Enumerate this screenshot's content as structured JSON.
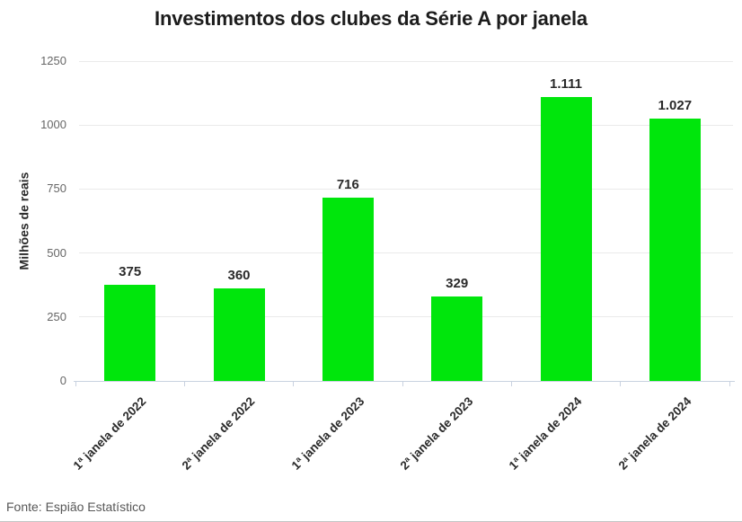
{
  "title": "Investimentos dos clubes da Série A por janela",
  "source": "Fonte: Espião Estatístico",
  "colors": {
    "bar": "#00e60c",
    "grid": "#eaeaea",
    "axis": "#c9d2e0",
    "title_text": "#1c1c1c",
    "value_label_text": "#2a2a2a",
    "y_tick_text": "#666666",
    "source_text": "#575757"
  },
  "chart_data": {
    "type": "bar",
    "title": "Investimentos dos clubes da Série A por janela",
    "xlabel": "",
    "ylabel": "Milhões de reais",
    "ylim": [
      0,
      1250
    ],
    "y_ticks": [
      0,
      250,
      500,
      750,
      1000,
      1250
    ],
    "grid": true,
    "legend": false,
    "categories": [
      "1ª janela de 2022",
      "2ª janela de 2022",
      "1ª janela de 2023",
      "2ª janela de 2023",
      "1ª janela de 2024",
      "2ª janela de 2024"
    ],
    "values": [
      375,
      360,
      716,
      329,
      1111,
      1027
    ],
    "value_labels": [
      "375",
      "360",
      "716",
      "329",
      "1.111",
      "1.027"
    ],
    "source": "Fonte: Espião Estatístico"
  }
}
